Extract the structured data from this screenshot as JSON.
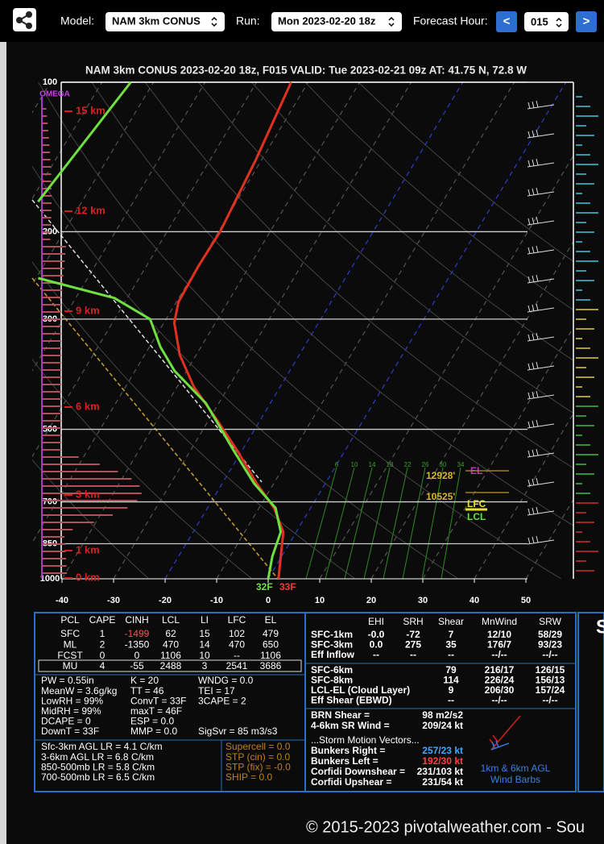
{
  "toolbar": {
    "model_label": "Model:",
    "model": "NAM 3km CONUS",
    "run_label": "Run:",
    "run": "Mon 2023-02-20 18z",
    "hour_label": "Forecast Hour:",
    "prev": "<",
    "hour": "015",
    "next": ">"
  },
  "skewt": {
    "title": "NAM 3km CONUS 2023-02-20 18z, F015  VALID: Tue 2023-02-21 09z  AT: 41.75 N, 72.8 W",
    "omega_label": "OMEGA",
    "pressure_levels": [
      100,
      200,
      300,
      500,
      700,
      850,
      1000
    ],
    "temperature_ticks": [
      -40,
      -30,
      -20,
      -10,
      0,
      10,
      20,
      30,
      40,
      50
    ],
    "height_labels": [
      "15 km",
      "12 km",
      "9 km",
      "6 km",
      "3 km",
      "1 km",
      "0 km"
    ],
    "mixing_ratio_labels": [
      "6",
      "10",
      "14",
      "18",
      "22",
      "26",
      "30",
      "34"
    ],
    "el_label": "EL",
    "el_height": "12928'",
    "lfc_height": "10525'",
    "lfc_label": "LFC",
    "lcl_label": "LCL",
    "surface_dewpoint": "32F",
    "surface_temperature": "33F",
    "temperature": {
      "pressure": [
        1000,
        805,
        720,
        643,
        554,
        477,
        411,
        354,
        305,
        277,
        235,
        200,
        144,
        100
      ],
      "values": [
        2,
        -2.5,
        -7.1,
        -13.3,
        -20.7,
        -28.6,
        -36.7,
        -43.2,
        -48,
        -49.6,
        -49.9,
        -49.7,
        -51.1,
        -53.3
      ]
    },
    "dewpoint": {
      "pressure": [
        1000,
        901,
        805,
        720,
        643,
        554,
        443,
        381,
        341,
        300,
        272,
        248,
        177,
        174,
        100
      ],
      "values": [
        0,
        -1.8,
        -3,
        -6.8,
        -13.8,
        -21.4,
        -32.5,
        -42.4,
        -47.9,
        -53.1,
        -62.5,
        -79.6,
        null,
        -88.5,
        -84.4
      ]
    }
  },
  "parcels": {
    "headers": [
      "PCL",
      "CAPE",
      "CINH",
      "LCL",
      "LI",
      "LFC",
      "EL"
    ],
    "rows": [
      [
        "SFC",
        "1",
        "-1499",
        "62",
        "15",
        "102",
        "479"
      ],
      [
        "ML",
        "2",
        "-1350",
        "470",
        "14",
        "470",
        "650"
      ],
      [
        "FCST",
        "0",
        "0",
        "1106",
        "10",
        "--",
        "1106"
      ],
      [
        "MU",
        "4",
        "-55",
        "2488",
        "3",
        "2541",
        "3686"
      ]
    ]
  },
  "indices": [
    [
      "PW = 0.55in",
      "K = 20",
      "WNDG = 0.0"
    ],
    [
      "MeanW = 3.6g/kg",
      "TT = 46",
      "TEI = 17"
    ],
    [
      "LowRH = 99%",
      "ConvT = 33F",
      "3CAPE = 2"
    ],
    [
      "MidRH = 99%",
      "maxT = 46F"
    ],
    [
      "DCAPE = 0",
      "ESP = 0.0"
    ],
    [
      "DownT = 33F",
      "MMP = 0.0",
      "SigSvr = 85 m3/s3"
    ]
  ],
  "lapse_rates": [
    "Sfc-3km AGL LR = 4.1 C/km",
    "3-6km AGL LR = 6.8 C/km",
    "850-500mb LR = 5.8 C/km",
    "700-500mb LR = 6.5 C/km"
  ],
  "composites": [
    "Supercell = 0.0",
    "STP (cin) = 0.0",
    "STP (fix) = -0.0",
    "SHIP = 0.0"
  ],
  "kinematics": {
    "headers": [
      "EHI",
      "SRH",
      "Shear",
      "MnWind",
      "SRW"
    ],
    "rows": [
      {
        "label": "SFC-1km",
        "ehi": "-0.0",
        "srh": "-72",
        "shear": "7",
        "mnwind": "12/10",
        "srw": "58/29"
      },
      {
        "label": "SFC-3km",
        "ehi": "0.0",
        "srh": "275",
        "shear": "35",
        "mnwind": "176/7",
        "srw": "93/23"
      },
      {
        "label": "Eff Inflow",
        "ehi": "--",
        "srh": "--",
        "shear": "--",
        "mnwind": "--/--",
        "srw": "--/--"
      },
      {
        "label": "SFC-6km",
        "shear": "79",
        "mnwind": "216/17",
        "srw": "126/15"
      },
      {
        "label": "SFC-8km",
        "shear": "114",
        "mnwind": "226/24",
        "srw": "156/13"
      },
      {
        "label": "LCL-EL (Cloud Layer)",
        "shear": "9",
        "mnwind": "206/30",
        "srw": "157/24"
      },
      {
        "label": "Eff Shear (EBWD)",
        "shear": "--",
        "mnwind": "--/--",
        "srw": "--/--"
      }
    ]
  },
  "shear_lines": [
    [
      "BRN Shear =",
      "98 m2/s2"
    ],
    [
      "4-6km SR Wind =",
      "209/24 kt"
    ]
  ],
  "storm_motion": {
    "title": "...Storm Motion Vectors...",
    "rows": [
      [
        "Bunkers Right =",
        "257/23 kt"
      ],
      [
        "Bunkers Left =",
        "192/30 kt"
      ],
      [
        "Corfidi Downshear =",
        "231/103 kt"
      ],
      [
        "Corfidi Upshear =",
        "231/54 kt"
      ]
    ]
  },
  "barb_caption": [
    "1km & 6km AGL",
    "Wind Barbs"
  ],
  "side_letter": "S",
  "footer": "© 2015-2023 pivotalweather.com - Sou"
}
